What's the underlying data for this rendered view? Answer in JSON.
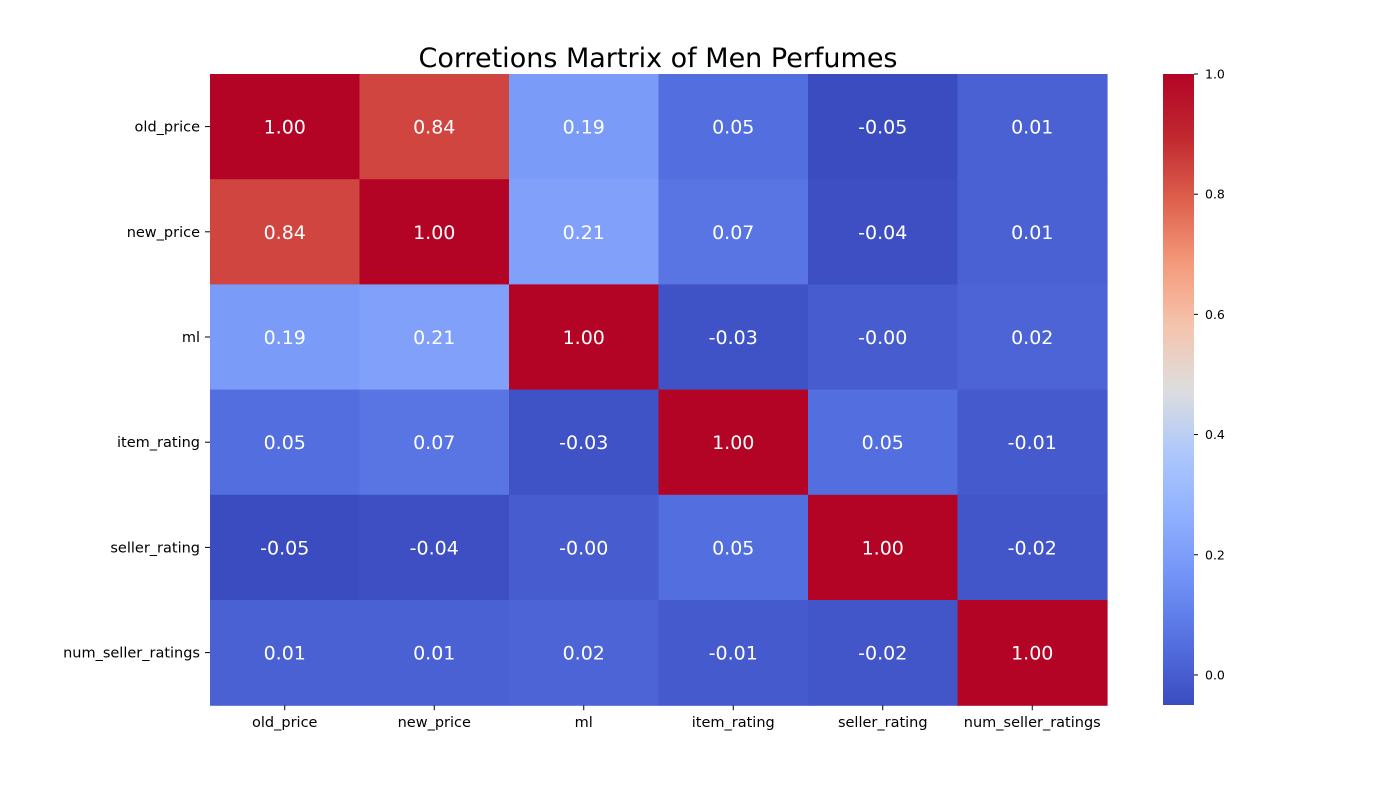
{
  "chart_data": {
    "type": "heatmap",
    "title": "Corretions Martrix of Men Perfumes",
    "xlabel": "",
    "ylabel": "",
    "row_labels": [
      "old_price",
      "new_price",
      "ml",
      "item_rating",
      "seller_rating",
      "num_seller_ratings"
    ],
    "col_labels": [
      "old_price",
      "new_price",
      "ml",
      "item_rating",
      "seller_rating",
      "num_seller_ratings"
    ],
    "values": [
      [
        1.0,
        0.84,
        0.19,
        0.05,
        -0.05,
        0.01
      ],
      [
        0.84,
        1.0,
        0.21,
        0.07,
        -0.04,
        0.01
      ],
      [
        0.19,
        0.21,
        1.0,
        -0.03,
        -0.0,
        0.02
      ],
      [
        0.05,
        0.07,
        -0.03,
        1.0,
        0.05,
        -0.01
      ],
      [
        -0.05,
        -0.04,
        -0.0,
        0.05,
        1.0,
        -0.02
      ],
      [
        0.01,
        0.01,
        0.02,
        -0.01,
        -0.02,
        1.0
      ]
    ],
    "value_labels": [
      [
        "1.00",
        "0.84",
        "0.19",
        "0.05",
        "-0.05",
        "0.01"
      ],
      [
        "0.84",
        "1.00",
        "0.21",
        "0.07",
        "-0.04",
        "0.01"
      ],
      [
        "0.19",
        "0.21",
        "1.00",
        "-0.03",
        "-0.00",
        "0.02"
      ],
      [
        "0.05",
        "0.07",
        "-0.03",
        "1.00",
        "0.05",
        "-0.01"
      ],
      [
        "-0.05",
        "-0.04",
        "-0.00",
        "0.05",
        "1.00",
        "-0.02"
      ],
      [
        "0.01",
        "0.01",
        "0.02",
        "-0.01",
        "-0.02",
        "1.00"
      ]
    ],
    "colormap": "coolwarm",
    "colorbar": {
      "vmin": -0.05,
      "vmax": 1.0,
      "ticks": [
        0.0,
        0.2,
        0.4,
        0.6,
        0.8,
        1.0
      ],
      "tick_labels": [
        "0.0",
        "0.2",
        "0.4",
        "0.6",
        "0.8",
        "1.0"
      ],
      "placement": "right"
    },
    "grid": false
  }
}
